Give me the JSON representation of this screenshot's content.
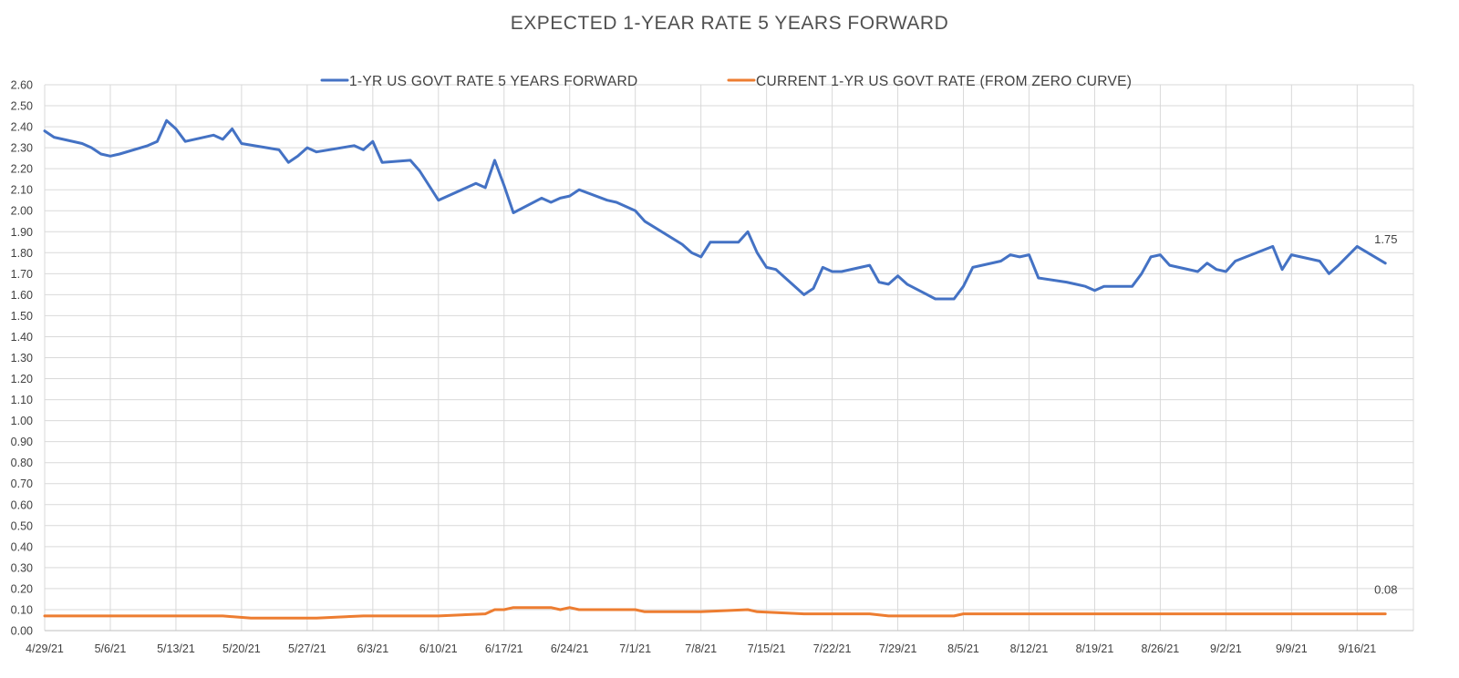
{
  "chart_data": {
    "type": "line",
    "title": "EXPECTED 1-YEAR RATE 5 YEARS FORWARD",
    "xlabel": "",
    "ylabel": "",
    "ylim": [
      0,
      2.6
    ],
    "y_ticks": [
      "0.00",
      "0.10",
      "0.20",
      "0.30",
      "0.40",
      "0.50",
      "0.60",
      "0.70",
      "0.80",
      "0.90",
      "1.00",
      "1.10",
      "1.20",
      "1.30",
      "1.40",
      "1.50",
      "1.60",
      "1.70",
      "1.80",
      "1.90",
      "2.00",
      "2.10",
      "2.20",
      "2.30",
      "2.40",
      "2.50",
      "2.60"
    ],
    "x_range": [
      "2021-04-29",
      "2021-09-22"
    ],
    "x_ticks": [
      {
        "date": "2021-04-29",
        "label": "4/29/21"
      },
      {
        "date": "2021-05-06",
        "label": "5/6/21"
      },
      {
        "date": "2021-05-13",
        "label": "5/13/21"
      },
      {
        "date": "2021-05-20",
        "label": "5/20/21"
      },
      {
        "date": "2021-05-27",
        "label": "5/27/21"
      },
      {
        "date": "2021-06-03",
        "label": "6/3/21"
      },
      {
        "date": "2021-06-10",
        "label": "6/10/21"
      },
      {
        "date": "2021-06-17",
        "label": "6/17/21"
      },
      {
        "date": "2021-06-24",
        "label": "6/24/21"
      },
      {
        "date": "2021-07-01",
        "label": "7/1/21"
      },
      {
        "date": "2021-07-08",
        "label": "7/8/21"
      },
      {
        "date": "2021-07-15",
        "label": "7/15/21"
      },
      {
        "date": "2021-07-22",
        "label": "7/22/21"
      },
      {
        "date": "2021-07-29",
        "label": "7/29/21"
      },
      {
        "date": "2021-08-05",
        "label": "8/5/21"
      },
      {
        "date": "2021-08-12",
        "label": "8/12/21"
      },
      {
        "date": "2021-08-19",
        "label": "8/19/21"
      },
      {
        "date": "2021-08-26",
        "label": "8/26/21"
      },
      {
        "date": "2021-09-02",
        "label": "9/2/21"
      },
      {
        "date": "2021-09-09",
        "label": "9/9/21"
      },
      {
        "date": "2021-09-16",
        "label": "9/16/21"
      }
    ],
    "grid": true,
    "legend_position": "top",
    "series": [
      {
        "name": "1-YR US GOVT RATE 5 YEARS FORWARD",
        "color": "#4472C4",
        "end_label": "1.75",
        "points": [
          [
            "2021-04-29",
            2.38
          ],
          [
            "2021-04-30",
            2.35
          ],
          [
            "2021-05-03",
            2.32
          ],
          [
            "2021-05-04",
            2.3
          ],
          [
            "2021-05-05",
            2.27
          ],
          [
            "2021-05-06",
            2.26
          ],
          [
            "2021-05-07",
            2.27
          ],
          [
            "2021-05-10",
            2.31
          ],
          [
            "2021-05-11",
            2.33
          ],
          [
            "2021-05-12",
            2.43
          ],
          [
            "2021-05-13",
            2.39
          ],
          [
            "2021-05-14",
            2.33
          ],
          [
            "2021-05-17",
            2.36
          ],
          [
            "2021-05-18",
            2.34
          ],
          [
            "2021-05-19",
            2.39
          ],
          [
            "2021-05-20",
            2.32
          ],
          [
            "2021-05-24",
            2.29
          ],
          [
            "2021-05-25",
            2.23
          ],
          [
            "2021-05-26",
            2.26
          ],
          [
            "2021-05-27",
            2.3
          ],
          [
            "2021-05-28",
            2.28
          ],
          [
            "2021-06-01",
            2.31
          ],
          [
            "2021-06-02",
            2.29
          ],
          [
            "2021-06-03",
            2.33
          ],
          [
            "2021-06-04",
            2.23
          ],
          [
            "2021-06-07",
            2.24
          ],
          [
            "2021-06-08",
            2.19
          ],
          [
            "2021-06-10",
            2.05
          ],
          [
            "2021-06-14",
            2.13
          ],
          [
            "2021-06-15",
            2.11
          ],
          [
            "2021-06-16",
            2.24
          ],
          [
            "2021-06-17",
            2.12
          ],
          [
            "2021-06-18",
            1.99
          ],
          [
            "2021-06-21",
            2.06
          ],
          [
            "2021-06-22",
            2.04
          ],
          [
            "2021-06-23",
            2.06
          ],
          [
            "2021-06-24",
            2.07
          ],
          [
            "2021-06-25",
            2.1
          ],
          [
            "2021-06-28",
            2.05
          ],
          [
            "2021-06-29",
            2.04
          ],
          [
            "2021-06-30",
            2.02
          ],
          [
            "2021-07-01",
            2.0
          ],
          [
            "2021-07-02",
            1.95
          ],
          [
            "2021-07-06",
            1.84
          ],
          [
            "2021-07-07",
            1.8
          ],
          [
            "2021-07-08",
            1.78
          ],
          [
            "2021-07-09",
            1.85
          ],
          [
            "2021-07-12",
            1.85
          ],
          [
            "2021-07-13",
            1.9
          ],
          [
            "2021-07-14",
            1.8
          ],
          [
            "2021-07-15",
            1.73
          ],
          [
            "2021-07-16",
            1.72
          ],
          [
            "2021-07-19",
            1.6
          ],
          [
            "2021-07-20",
            1.63
          ],
          [
            "2021-07-21",
            1.73
          ],
          [
            "2021-07-22",
            1.71
          ],
          [
            "2021-07-23",
            1.71
          ],
          [
            "2021-07-26",
            1.74
          ],
          [
            "2021-07-27",
            1.66
          ],
          [
            "2021-07-28",
            1.65
          ],
          [
            "2021-07-29",
            1.69
          ],
          [
            "2021-07-30",
            1.65
          ],
          [
            "2021-08-02",
            1.58
          ],
          [
            "2021-08-03",
            1.58
          ],
          [
            "2021-08-04",
            1.58
          ],
          [
            "2021-08-05",
            1.64
          ],
          [
            "2021-08-06",
            1.73
          ],
          [
            "2021-08-09",
            1.76
          ],
          [
            "2021-08-10",
            1.79
          ],
          [
            "2021-08-11",
            1.78
          ],
          [
            "2021-08-12",
            1.79
          ],
          [
            "2021-08-13",
            1.68
          ],
          [
            "2021-08-16",
            1.66
          ],
          [
            "2021-08-17",
            1.65
          ],
          [
            "2021-08-18",
            1.64
          ],
          [
            "2021-08-19",
            1.62
          ],
          [
            "2021-08-20",
            1.64
          ],
          [
            "2021-08-23",
            1.64
          ],
          [
            "2021-08-24",
            1.7
          ],
          [
            "2021-08-25",
            1.78
          ],
          [
            "2021-08-26",
            1.79
          ],
          [
            "2021-08-27",
            1.74
          ],
          [
            "2021-08-30",
            1.71
          ],
          [
            "2021-08-31",
            1.75
          ],
          [
            "2021-09-01",
            1.72
          ],
          [
            "2021-09-02",
            1.71
          ],
          [
            "2021-09-03",
            1.76
          ],
          [
            "2021-09-07",
            1.83
          ],
          [
            "2021-09-08",
            1.72
          ],
          [
            "2021-09-09",
            1.79
          ],
          [
            "2021-09-12",
            1.76
          ],
          [
            "2021-09-13",
            1.7
          ],
          [
            "2021-09-14",
            1.74
          ],
          [
            "2021-09-16",
            1.83
          ],
          [
            "2021-09-19",
            1.75
          ]
        ]
      },
      {
        "name": "CURRENT 1-YR US GOVT RATE (FROM ZERO CURVE)",
        "color": "#ED7D31",
        "end_label": "0.08",
        "points": [
          [
            "2021-04-29",
            0.07
          ],
          [
            "2021-05-04",
            0.07
          ],
          [
            "2021-05-06",
            0.07
          ],
          [
            "2021-05-10",
            0.07
          ],
          [
            "2021-05-12",
            0.07
          ],
          [
            "2021-05-14",
            0.07
          ],
          [
            "2021-05-18",
            0.07
          ],
          [
            "2021-05-21",
            0.06
          ],
          [
            "2021-05-26",
            0.06
          ],
          [
            "2021-05-28",
            0.06
          ],
          [
            "2021-06-02",
            0.07
          ],
          [
            "2021-06-03",
            0.07
          ],
          [
            "2021-06-04",
            0.07
          ],
          [
            "2021-06-10",
            0.07
          ],
          [
            "2021-06-15",
            0.08
          ],
          [
            "2021-06-16",
            0.1
          ],
          [
            "2021-06-17",
            0.1
          ],
          [
            "2021-06-18",
            0.11
          ],
          [
            "2021-06-22",
            0.11
          ],
          [
            "2021-06-23",
            0.1
          ],
          [
            "2021-06-24",
            0.11
          ],
          [
            "2021-06-25",
            0.1
          ],
          [
            "2021-06-30",
            0.1
          ],
          [
            "2021-07-01",
            0.1
          ],
          [
            "2021-07-02",
            0.09
          ],
          [
            "2021-07-07",
            0.09
          ],
          [
            "2021-07-08",
            0.09
          ],
          [
            "2021-07-13",
            0.1
          ],
          [
            "2021-07-14",
            0.09
          ],
          [
            "2021-07-19",
            0.08
          ],
          [
            "2021-07-26",
            0.08
          ],
          [
            "2021-07-28",
            0.07
          ],
          [
            "2021-08-04",
            0.07
          ],
          [
            "2021-08-05",
            0.08
          ],
          [
            "2021-08-10",
            0.08
          ],
          [
            "2021-08-12",
            0.08
          ],
          [
            "2021-08-18",
            0.08
          ],
          [
            "2021-08-20",
            0.08
          ],
          [
            "2021-08-26",
            0.08
          ],
          [
            "2021-08-27",
            0.08
          ],
          [
            "2021-08-31",
            0.08
          ],
          [
            "2021-09-01",
            0.08
          ],
          [
            "2021-09-08",
            0.08
          ],
          [
            "2021-09-13",
            0.08
          ],
          [
            "2021-09-16",
            0.08
          ],
          [
            "2021-09-19",
            0.08
          ]
        ]
      }
    ]
  }
}
